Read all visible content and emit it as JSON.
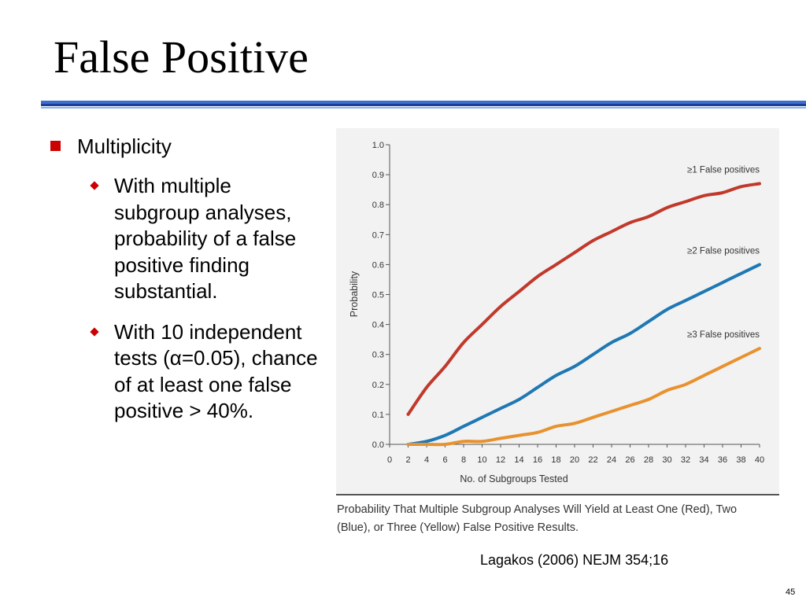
{
  "slide": {
    "title": "False Positive",
    "bullet": "Multiplicity",
    "sub_bullets": [
      "With multiple subgroup analyses, probability of a false positive finding substantial.",
      "With 10 independent tests (α=0.05), chance of at least one false positive > 40%."
    ],
    "caption": "Probability That Multiple Subgroup Analyses Will Yield at Least One (Red), Two (Blue), or Three (Yellow) False Positive Results.",
    "citation": "Lagakos (2006) NEJM 354;16",
    "page_number": "45"
  },
  "colors": {
    "red": "#c0392b",
    "blue": "#1f78b4",
    "yellow": "#e8922f",
    "bullet": "#cc0000"
  },
  "chart_data": {
    "type": "line",
    "xlabel": "No. of Subgroups Tested",
    "ylabel": "Probability",
    "xlim": [
      0,
      40
    ],
    "ylim": [
      0,
      1.0
    ],
    "x_ticks": [
      "0",
      "2",
      "4",
      "6",
      "8",
      "10",
      "12",
      "14",
      "16",
      "18",
      "20",
      "22",
      "24",
      "26",
      "28",
      "30",
      "32",
      "34",
      "36",
      "38",
      "40"
    ],
    "y_ticks": [
      "0.0",
      "0.1",
      "0.2",
      "0.3",
      "0.4",
      "0.5",
      "0.6",
      "0.7",
      "0.8",
      "0.9",
      "1.0"
    ],
    "x": [
      2,
      4,
      6,
      8,
      10,
      12,
      14,
      16,
      18,
      20,
      22,
      24,
      26,
      28,
      30,
      32,
      34,
      36,
      38,
      40
    ],
    "series": [
      {
        "name": "≥1 False positives",
        "color": "#c0392b",
        "values": [
          0.1,
          0.19,
          0.26,
          0.34,
          0.4,
          0.46,
          0.51,
          0.56,
          0.6,
          0.64,
          0.68,
          0.71,
          0.74,
          0.76,
          0.79,
          0.81,
          0.83,
          0.84,
          0.86,
          0.87
        ]
      },
      {
        "name": "≥2 False positives",
        "color": "#1f78b4",
        "values": [
          0.0,
          0.01,
          0.03,
          0.06,
          0.09,
          0.12,
          0.15,
          0.19,
          0.23,
          0.26,
          0.3,
          0.34,
          0.37,
          0.41,
          0.45,
          0.48,
          0.51,
          0.54,
          0.57,
          0.6
        ]
      },
      {
        "name": "≥3 False positives",
        "color": "#e8922f",
        "values": [
          0.0,
          0.0,
          0.0,
          0.01,
          0.01,
          0.02,
          0.03,
          0.04,
          0.06,
          0.07,
          0.09,
          0.11,
          0.13,
          0.15,
          0.18,
          0.2,
          0.23,
          0.26,
          0.29,
          0.32
        ]
      }
    ]
  }
}
